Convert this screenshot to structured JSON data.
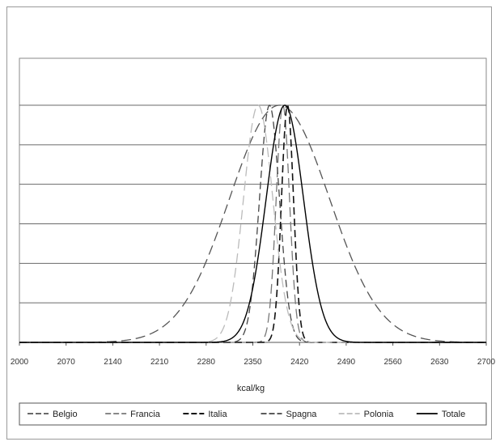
{
  "chart_data": {
    "type": "line",
    "title": "",
    "xlabel": "kcal/kg",
    "ylabel": "",
    "xlim": [
      2000,
      2700
    ],
    "ylim": [
      0,
      1
    ],
    "x_ticks": [
      2000,
      2070,
      2140,
      2210,
      2280,
      2350,
      2420,
      2490,
      2560,
      2630,
      2700
    ],
    "x_tick_labels": [
      "2000",
      "2070",
      "2140",
      "2210",
      "2280",
      "2350",
      "2420",
      "2490",
      "2560",
      "2630",
      "2700"
    ],
    "y_gridlines": 6,
    "grid": true,
    "legend_position": "bottom",
    "series": [
      {
        "name": "Belgio",
        "color": "#555555",
        "dash": "long-dash",
        "width": 1.3,
        "mean": 2390,
        "sd": 75
      },
      {
        "name": "Francia",
        "color": "#777777",
        "dash": "long-dash",
        "width": 1.3,
        "mean": 2395,
        "sd": 10
      },
      {
        "name": "Italia",
        "color": "#111111",
        "dash": "dash",
        "width": 1.6,
        "mean": 2402,
        "sd": 9
      },
      {
        "name": "Spagna",
        "color": "#444444",
        "dash": "dash",
        "width": 1.3,
        "mean": 2375,
        "sd": 15
      },
      {
        "name": "Polonia",
        "color": "#bbbbbb",
        "dash": "long-dash",
        "width": 1.3,
        "mean": 2358,
        "sd": 22
      },
      {
        "name": "Totale",
        "color": "#000000",
        "dash": "solid",
        "width": 1.4,
        "mean": 2398,
        "sd": 28
      }
    ]
  }
}
